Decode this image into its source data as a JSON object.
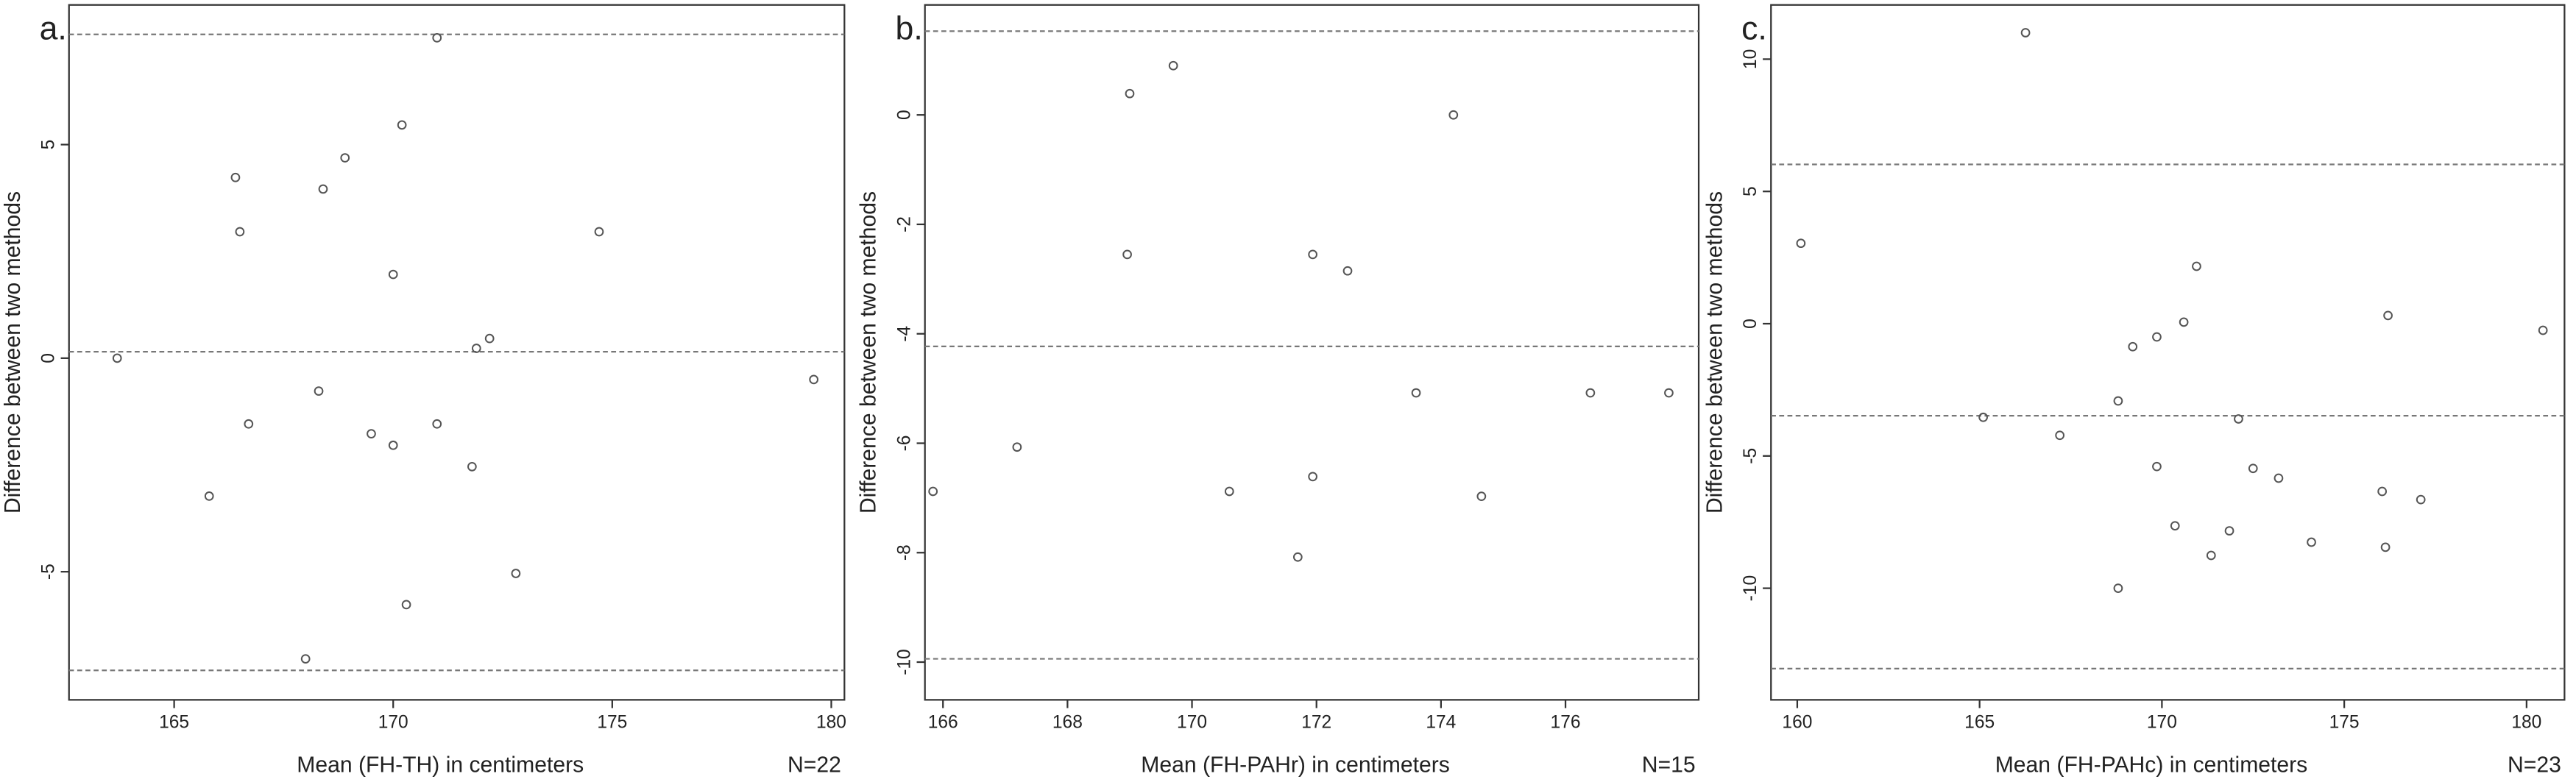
{
  "chart_data": [
    {
      "type": "scatter",
      "title": "a.",
      "xlabel": "Mean (FH-TH) in centimeters",
      "ylabel": "Difference between two methods",
      "annotation": "N=22",
      "xlim": [
        162.6,
        180.3
      ],
      "ylim": [
        -8.0,
        8.27
      ],
      "xticks": [
        165,
        170,
        175,
        180
      ],
      "yticks": [
        -5,
        0,
        5
      ],
      "reference_lines": [
        7.58,
        0.15,
        -7.31
      ],
      "x": [
        163.7,
        165.8,
        166.4,
        166.5,
        166.7,
        168.4,
        168.3,
        168.9,
        168.0,
        169.5,
        170.0,
        170.0,
        170.2,
        170.3,
        171.0,
        171.0,
        171.8,
        171.9,
        172.2,
        172.8,
        174.7,
        179.6
      ],
      "y": [
        0.0,
        -3.23,
        4.23,
        2.96,
        -1.54,
        3.96,
        -0.77,
        4.69,
        -7.04,
        -1.77,
        1.96,
        -2.04,
        5.46,
        -5.77,
        7.5,
        -1.54,
        -2.54,
        0.23,
        0.46,
        -5.04,
        2.96,
        -0.5
      ],
      "color": "#555555"
    },
    {
      "type": "scatter",
      "title": "b.",
      "xlabel": "Mean (FH-PAHr) in centimeters",
      "ylabel": "Difference between two methods",
      "annotation": "N=15",
      "xlim": [
        165.71,
        178.14
      ],
      "ylim": [
        -10.69,
        2.01
      ],
      "xticks": [
        166,
        168,
        170,
        172,
        174,
        176
      ],
      "yticks": [
        -10,
        -8,
        -6,
        -4,
        -2,
        0
      ],
      "reference_lines": [
        1.53,
        -4.23,
        -9.94
      ],
      "x": [
        165.84,
        167.19,
        169.0,
        168.96,
        169.7,
        170.6,
        171.7,
        171.94,
        171.94,
        172.5,
        173.6,
        174.2,
        174.65,
        176.4,
        177.66
      ],
      "y": [
        -6.88,
        -6.07,
        0.39,
        -2.55,
        0.9,
        -6.88,
        -8.08,
        -2.55,
        -6.61,
        -2.85,
        -5.08,
        0.0,
        -6.97,
        -5.08,
        -5.08
      ],
      "color": "#555555"
    },
    {
      "type": "scatter",
      "title": "c.",
      "xlabel": "Mean (FH-PAHc) in centimeters",
      "ylabel": "Difference between two methods",
      "annotation": "N=23",
      "xlim": [
        159.28,
        181.04
      ],
      "ylim": [
        -14.22,
        12.05
      ],
      "xticks": [
        160,
        165,
        170,
        175,
        180
      ],
      "yticks": [
        -10,
        -5,
        0,
        5,
        10
      ],
      "reference_lines": [
        6.02,
        -3.48,
        -13.04
      ],
      "x": [
        160.1,
        165.1,
        166.26,
        167.2,
        168.8,
        168.8,
        169.2,
        169.86,
        169.86,
        170.36,
        170.6,
        170.95,
        171.35,
        171.85,
        172.1,
        172.5,
        173.2,
        174.1,
        176.04,
        176.13,
        176.2,
        177.1,
        180.45
      ],
      "y": [
        3.04,
        -3.54,
        11.0,
        -4.22,
        -2.92,
        -10.0,
        -0.87,
        -0.5,
        -5.4,
        -7.64,
        0.06,
        2.17,
        -8.76,
        -7.83,
        -3.6,
        -5.47,
        -5.84,
        -8.26,
        -6.34,
        -8.45,
        0.31,
        -6.65,
        -0.25
      ],
      "color": "#555555"
    }
  ]
}
